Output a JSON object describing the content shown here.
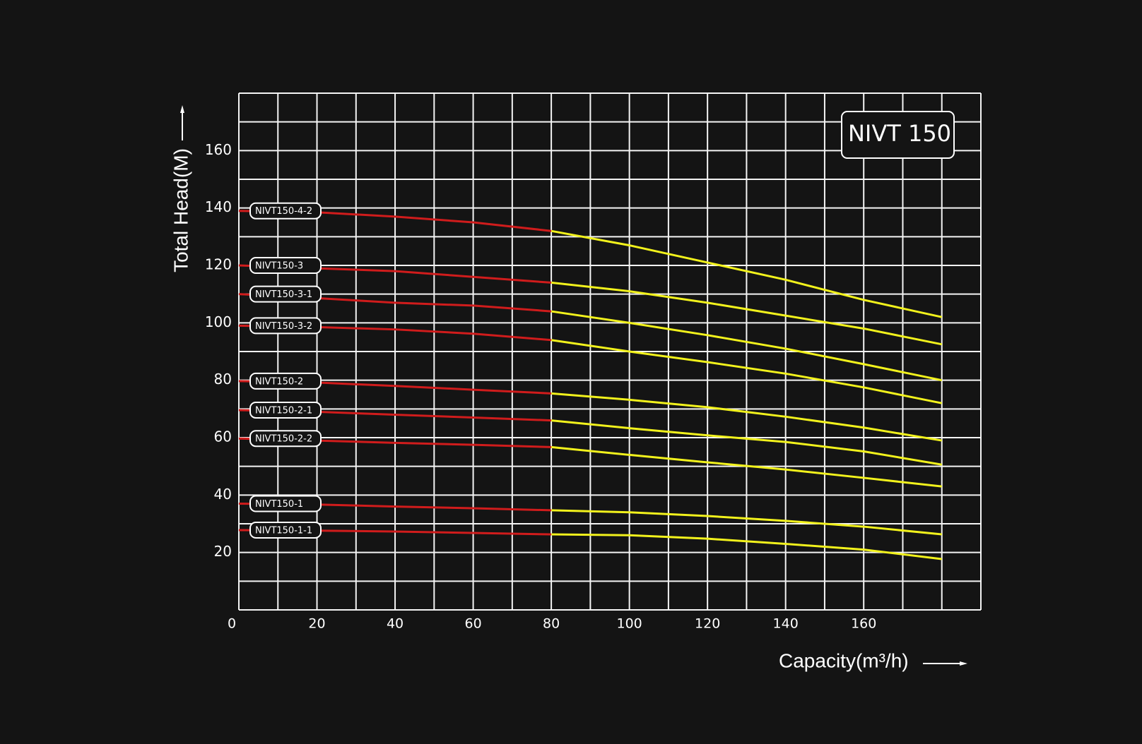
{
  "chart_data": {
    "type": "line",
    "title": "NIVT 150",
    "y_label": "Total Head(M)",
    "x_label": "Capacity(m³/h)",
    "x": [
      0,
      20,
      40,
      60,
      80,
      100,
      120,
      140,
      160,
      180
    ],
    "series": [
      {
        "name": "NIVT150-4-2",
        "values": [
          139,
          138.5,
          137,
          135,
          132,
          127,
          121,
          115,
          108,
          102
        ]
      },
      {
        "name": "NIVT150-3",
        "values": [
          120,
          119,
          118,
          116,
          114,
          111,
          107,
          102.5,
          98,
          92.5
        ]
      },
      {
        "name": "NIVT150-3-1",
        "values": [
          110,
          108.6,
          107,
          106,
          104,
          100,
          95.7,
          91,
          85.6,
          80
        ]
      },
      {
        "name": "NIVT150-3-2",
        "values": [
          99,
          98.5,
          97.7,
          96.2,
          94,
          90,
          86.3,
          82.3,
          77.5,
          72
        ]
      },
      {
        "name": "NIVT150-2",
        "values": [
          79.7,
          79.2,
          78,
          76.7,
          75.4,
          73.2,
          70.6,
          67.3,
          63.5,
          59
        ]
      },
      {
        "name": "NIVT150-2-1",
        "values": [
          69.6,
          69,
          68,
          67,
          66,
          63.3,
          60.8,
          58.5,
          55.2,
          50.6
        ]
      },
      {
        "name": "NIVT150-2-2",
        "values": [
          59.7,
          59,
          58.2,
          57.5,
          56.7,
          54,
          51.4,
          48.9,
          46,
          43
        ]
      },
      {
        "name": "NIVT150-1",
        "values": [
          37,
          36.7,
          36,
          35.4,
          34.7,
          34,
          32.7,
          31,
          29,
          26.3
        ]
      },
      {
        "name": "NIVT150-1-1",
        "values": [
          27.8,
          27.6,
          27.3,
          26.8,
          26.3,
          26,
          24.8,
          23,
          21,
          17.7
        ]
      }
    ],
    "line_colors": [
      "#d01c1c",
      "#f2f21c"
    ],
    "color_change_at": 80,
    "xlim": [
      0,
      190
    ],
    "ylim": [
      0,
      180
    ],
    "xticks": [
      0,
      20,
      40,
      60,
      80,
      100,
      120,
      140,
      160
    ],
    "yticks": [
      20,
      40,
      60,
      80,
      100,
      120,
      140,
      160
    ],
    "xgrid": [
      0,
      10,
      20,
      30,
      40,
      50,
      60,
      70,
      80,
      90,
      100,
      110,
      120,
      130,
      140,
      150,
      160,
      170,
      180,
      190
    ],
    "ygrid": [
      0,
      10,
      20,
      30,
      40,
      50,
      60,
      70,
      80,
      90,
      100,
      110,
      120,
      130,
      140,
      150,
      160,
      170,
      180
    ],
    "grid": true
  }
}
